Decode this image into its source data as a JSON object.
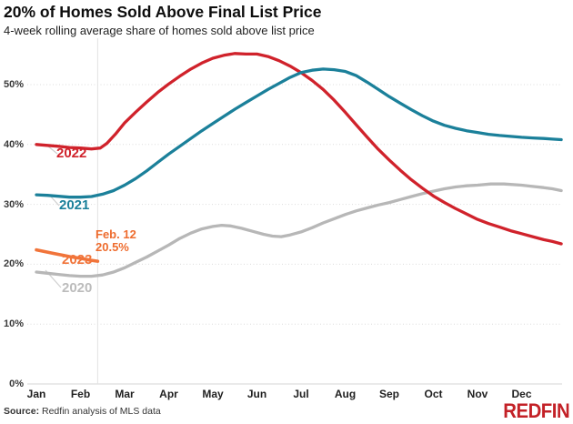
{
  "header": {
    "title": "20% of Homes Sold Above Final List Price",
    "subtitle": "4-week rolling average share of homes sold above list price"
  },
  "footer": {
    "source_label": "Source:",
    "source_text": " Redfin analysis of MLS data",
    "logo_text": "REDFIN"
  },
  "colors": {
    "red_2022": "#d0222b",
    "teal_2021": "#1b809a",
    "orange_2023": "#f1743a",
    "gray_2020": "#b7b7b7",
    "gridline": "#dcdcdc",
    "axis_baseline": "#d4d4d4",
    "marker_line": "#e3e3e3",
    "leader_line": "#cfcfcf",
    "logo_red": "#c32127"
  },
  "chart_data": {
    "type": "line",
    "title": "20% of Homes Sold Above Final List Price",
    "subtitle": "4-week rolling average share of homes sold above list price",
    "x_axis": {
      "months": [
        "Jan",
        "Feb",
        "Mar",
        "Apr",
        "May",
        "Jun",
        "Jul",
        "Aug",
        "Sep",
        "Oct",
        "Nov",
        "Dec"
      ],
      "unit": "month fraction since Jan 1, 0-12"
    },
    "y_axis": {
      "ticks": [
        0,
        10,
        20,
        30,
        40,
        50
      ],
      "suffix": "%",
      "ylim": [
        0,
        57
      ],
      "grid": "dotted"
    },
    "marker": {
      "x_month": 1.39,
      "label": "Feb. 12",
      "value_label": "20.5%"
    },
    "series": [
      {
        "name": "2022",
        "color": "#d0222b",
        "points": [
          [
            0,
            40.0
          ],
          [
            0.25,
            39.85
          ],
          [
            0.5,
            39.7
          ],
          [
            0.75,
            39.5
          ],
          [
            1.0,
            39.4
          ],
          [
            1.25,
            39.25
          ],
          [
            1.45,
            39.4
          ],
          [
            1.6,
            40.2
          ],
          [
            1.8,
            41.8
          ],
          [
            2.0,
            43.6
          ],
          [
            2.25,
            45.4
          ],
          [
            2.5,
            47.1
          ],
          [
            2.75,
            48.7
          ],
          [
            3.0,
            50.1
          ],
          [
            3.25,
            51.4
          ],
          [
            3.5,
            52.6
          ],
          [
            3.75,
            53.6
          ],
          [
            4.0,
            54.4
          ],
          [
            4.25,
            54.9
          ],
          [
            4.5,
            55.2
          ],
          [
            4.75,
            55.1
          ],
          [
            5.0,
            55.1
          ],
          [
            5.25,
            54.7
          ],
          [
            5.5,
            54.0
          ],
          [
            5.75,
            53.1
          ],
          [
            6.0,
            52.0
          ],
          [
            6.25,
            50.7
          ],
          [
            6.5,
            49.2
          ],
          [
            6.75,
            47.4
          ],
          [
            7.0,
            45.4
          ],
          [
            7.25,
            43.3
          ],
          [
            7.5,
            41.2
          ],
          [
            7.75,
            39.2
          ],
          [
            8.0,
            37.4
          ],
          [
            8.25,
            35.7
          ],
          [
            8.5,
            34.1
          ],
          [
            8.75,
            32.7
          ],
          [
            9.0,
            31.4
          ],
          [
            9.25,
            30.3
          ],
          [
            9.5,
            29.3
          ],
          [
            9.75,
            28.4
          ],
          [
            10.0,
            27.5
          ],
          [
            10.25,
            26.8
          ],
          [
            10.5,
            26.2
          ],
          [
            10.75,
            25.6
          ],
          [
            11.0,
            25.1
          ],
          [
            11.25,
            24.6
          ],
          [
            11.5,
            24.1
          ],
          [
            11.7,
            23.8
          ],
          [
            11.9,
            23.4
          ]
        ]
      },
      {
        "name": "2021",
        "color": "#1b809a",
        "points": [
          [
            0,
            31.6
          ],
          [
            0.25,
            31.5
          ],
          [
            0.5,
            31.35
          ],
          [
            0.75,
            31.2
          ],
          [
            1.0,
            31.2
          ],
          [
            1.25,
            31.3
          ],
          [
            1.5,
            31.7
          ],
          [
            1.75,
            32.3
          ],
          [
            2.0,
            33.2
          ],
          [
            2.25,
            34.3
          ],
          [
            2.5,
            35.6
          ],
          [
            2.75,
            37.0
          ],
          [
            3.0,
            38.4
          ],
          [
            3.25,
            39.7
          ],
          [
            3.5,
            41.0
          ],
          [
            3.75,
            42.3
          ],
          [
            4.0,
            43.5
          ],
          [
            4.25,
            44.7
          ],
          [
            4.5,
            45.9
          ],
          [
            4.75,
            47.0
          ],
          [
            5.0,
            48.1
          ],
          [
            5.25,
            49.2
          ],
          [
            5.5,
            50.2
          ],
          [
            5.75,
            51.2
          ],
          [
            6.0,
            52.0
          ],
          [
            6.25,
            52.4
          ],
          [
            6.5,
            52.6
          ],
          [
            6.75,
            52.5
          ],
          [
            7.0,
            52.2
          ],
          [
            7.25,
            51.5
          ],
          [
            7.5,
            50.4
          ],
          [
            7.75,
            49.2
          ],
          [
            8.0,
            48.0
          ],
          [
            8.25,
            46.9
          ],
          [
            8.5,
            45.8
          ],
          [
            8.75,
            44.8
          ],
          [
            9.0,
            43.9
          ],
          [
            9.25,
            43.2
          ],
          [
            9.5,
            42.7
          ],
          [
            9.75,
            42.3
          ],
          [
            10.0,
            42.0
          ],
          [
            10.25,
            41.7
          ],
          [
            10.5,
            41.5
          ],
          [
            10.75,
            41.35
          ],
          [
            11.0,
            41.2
          ],
          [
            11.25,
            41.1
          ],
          [
            11.5,
            41.0
          ],
          [
            11.7,
            40.9
          ],
          [
            11.9,
            40.8
          ]
        ]
      },
      {
        "name": "2023",
        "color": "#f1743a",
        "points": [
          [
            0,
            22.4
          ],
          [
            0.2,
            22.1
          ],
          [
            0.4,
            21.8
          ],
          [
            0.6,
            21.5
          ],
          [
            0.8,
            21.2
          ],
          [
            1.0,
            21.0
          ],
          [
            1.2,
            20.7
          ],
          [
            1.39,
            20.5
          ]
        ]
      },
      {
        "name": "2020",
        "color": "#b7b7b7",
        "points": [
          [
            0,
            18.7
          ],
          [
            0.25,
            18.5
          ],
          [
            0.5,
            18.3
          ],
          [
            0.75,
            18.1
          ],
          [
            1.0,
            18.0
          ],
          [
            1.25,
            18.0
          ],
          [
            1.5,
            18.2
          ],
          [
            1.75,
            18.7
          ],
          [
            2.0,
            19.4
          ],
          [
            2.25,
            20.3
          ],
          [
            2.5,
            21.2
          ],
          [
            2.75,
            22.2
          ],
          [
            3.0,
            23.2
          ],
          [
            3.25,
            24.3
          ],
          [
            3.5,
            25.2
          ],
          [
            3.75,
            25.9
          ],
          [
            4.0,
            26.3
          ],
          [
            4.2,
            26.5
          ],
          [
            4.4,
            26.4
          ],
          [
            4.65,
            26.0
          ],
          [
            4.9,
            25.5
          ],
          [
            5.15,
            25.0
          ],
          [
            5.35,
            24.7
          ],
          [
            5.55,
            24.6
          ],
          [
            5.75,
            24.9
          ],
          [
            6.0,
            25.4
          ],
          [
            6.25,
            26.1
          ],
          [
            6.5,
            26.9
          ],
          [
            6.75,
            27.6
          ],
          [
            7.0,
            28.3
          ],
          [
            7.25,
            28.9
          ],
          [
            7.5,
            29.4
          ],
          [
            7.75,
            29.9
          ],
          [
            8.0,
            30.3
          ],
          [
            8.25,
            30.8
          ],
          [
            8.5,
            31.3
          ],
          [
            8.75,
            31.8
          ],
          [
            9.0,
            32.2
          ],
          [
            9.25,
            32.6
          ],
          [
            9.5,
            32.9
          ],
          [
            9.75,
            33.1
          ],
          [
            10.0,
            33.2
          ],
          [
            10.3,
            33.4
          ],
          [
            10.6,
            33.4
          ],
          [
            11.0,
            33.2
          ],
          [
            11.25,
            33.0
          ],
          [
            11.5,
            32.8
          ],
          [
            11.7,
            32.6
          ],
          [
            11.9,
            32.3
          ]
        ]
      }
    ],
    "legend_position": "inline-labels-left"
  }
}
